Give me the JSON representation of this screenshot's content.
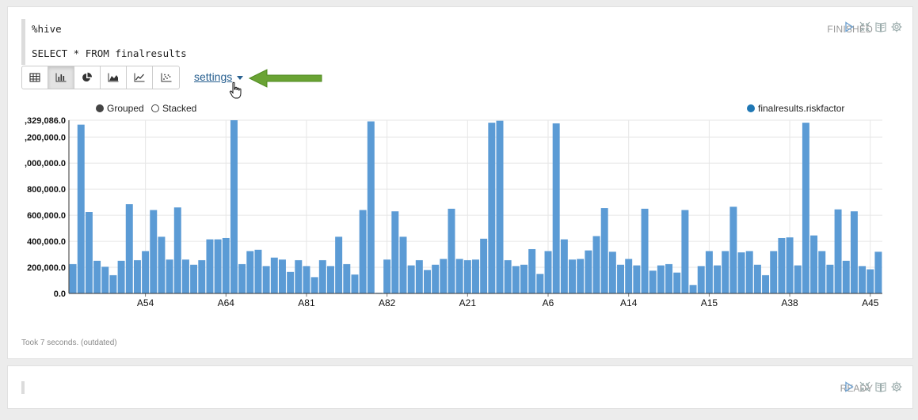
{
  "paragraph1": {
    "code_line1": "%hive",
    "code_line2": "SELECT * FROM finalresults",
    "status": "FINISHED",
    "settings_label": "settings",
    "legend_grouped": "Grouped",
    "legend_stacked": "Stacked",
    "took": "Took 7 seconds. (outdated)"
  },
  "paragraph2": {
    "status": "READY"
  },
  "toolbar": {
    "selected": "bar-chart",
    "buttons": [
      "table",
      "bar-chart",
      "pie-chart",
      "area-chart",
      "line-chart",
      "scatter-chart"
    ]
  },
  "chart_data": {
    "type": "bar",
    "series": [
      {
        "name": "finalresults.riskfactor",
        "color": "#5b9bd5",
        "values": [
          225000,
          1295000,
          625000,
          250000,
          205000,
          140000,
          250000,
          685000,
          255000,
          325000,
          640000,
          435000,
          260000,
          660000,
          260000,
          220000,
          255000,
          415000,
          415000,
          425000,
          1329086,
          225000,
          325000,
          335000,
          210000,
          275000,
          260000,
          165000,
          255000,
          210000,
          125000,
          255000,
          210000,
          435000,
          225000,
          145000,
          640000,
          1320000,
          5000,
          260000,
          630000,
          435000,
          215000,
          255000,
          180000,
          220000,
          265000,
          650000,
          265000,
          255000,
          260000,
          420000,
          1310000,
          1325000,
          255000,
          210000,
          220000,
          340000,
          150000,
          325000,
          1305000,
          415000,
          260000,
          265000,
          330000,
          440000,
          655000,
          320000,
          220000,
          265000,
          215000,
          650000,
          175000,
          215000,
          225000,
          160000,
          640000,
          65000,
          210000,
          325000,
          215000,
          325000,
          665000,
          315000,
          325000,
          220000,
          140000,
          325000,
          425000,
          430000,
          215000,
          1310000,
          445000,
          325000,
          220000,
          645000,
          250000,
          630000,
          210000,
          185000,
          320000
        ]
      }
    ],
    "x_tick_labels": [
      "A54",
      "A64",
      "A81",
      "A82",
      "A21",
      "A6",
      "A14",
      "A15",
      "A38",
      "A45"
    ],
    "y_tick_labels": [
      "0.0",
      "200,000.0",
      "400,000.0",
      "600,000.0",
      "800,000.0",
      ",000,000.0",
      ",200,000.0",
      ",329,086.0"
    ],
    "y_ticks": [
      0,
      200000,
      400000,
      600000,
      800000,
      1000000,
      1200000,
      1329086
    ],
    "ylim": [
      0,
      1329086
    ],
    "legend_position": "top-right",
    "grid": true
  }
}
